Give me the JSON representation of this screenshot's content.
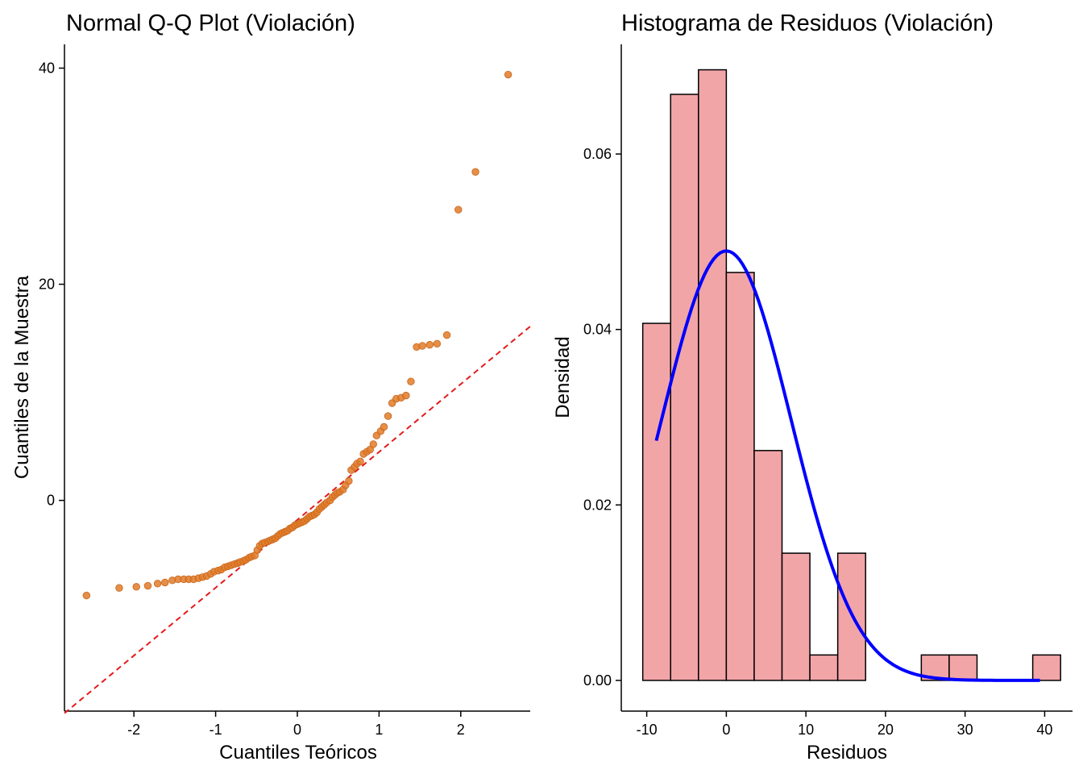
{
  "chart_data": [
    {
      "type": "scatter",
      "title": "Normal Q-Q Plot (Violación)",
      "xlabel": "Cuantiles Teóricos",
      "ylabel": "Cuantiles de la Muestra",
      "xlim": [
        -2.85,
        2.85
      ],
      "ylim": [
        -19.5,
        42.2
      ],
      "x_ticks": [
        -2,
        -1,
        0,
        1,
        2
      ],
      "y_ticks": [
        0,
        20,
        40
      ],
      "grid": false,
      "point_color": "#E07B28",
      "reference_line": {
        "color": "#E41A1C",
        "style": "dashed",
        "slope": 6.28,
        "intercept": -1.8
      },
      "points": [
        {
          "x": -2.58,
          "y": -8.8
        },
        {
          "x": -2.18,
          "y": -8.1
        },
        {
          "x": -1.97,
          "y": -8.0
        },
        {
          "x": -1.83,
          "y": -7.9
        },
        {
          "x": -1.71,
          "y": -7.7
        },
        {
          "x": -1.62,
          "y": -7.6
        },
        {
          "x": -1.53,
          "y": -7.4
        },
        {
          "x": -1.46,
          "y": -7.3
        },
        {
          "x": -1.39,
          "y": -7.3
        },
        {
          "x": -1.33,
          "y": -7.3
        },
        {
          "x": -1.27,
          "y": -7.3
        },
        {
          "x": -1.21,
          "y": -7.2
        },
        {
          "x": -1.16,
          "y": -7.1
        },
        {
          "x": -1.11,
          "y": -7.0
        },
        {
          "x": -1.06,
          "y": -6.8
        },
        {
          "x": -1.02,
          "y": -6.6
        },
        {
          "x": -0.97,
          "y": -6.5
        },
        {
          "x": -0.93,
          "y": -6.4
        },
        {
          "x": -0.89,
          "y": -6.2
        },
        {
          "x": -0.85,
          "y": -6.1
        },
        {
          "x": -0.81,
          "y": -6.0
        },
        {
          "x": -0.77,
          "y": -5.9
        },
        {
          "x": -0.73,
          "y": -5.8
        },
        {
          "x": -0.7,
          "y": -5.7
        },
        {
          "x": -0.66,
          "y": -5.6
        },
        {
          "x": -0.63,
          "y": -5.5
        },
        {
          "x": -0.59,
          "y": -5.3
        },
        {
          "x": -0.56,
          "y": -5.2
        },
        {
          "x": -0.52,
          "y": -5.1
        },
        {
          "x": -0.49,
          "y": -4.6
        },
        {
          "x": -0.46,
          "y": -4.2
        },
        {
          "x": -0.43,
          "y": -4.0
        },
        {
          "x": -0.4,
          "y": -3.9
        },
        {
          "x": -0.36,
          "y": -3.8
        },
        {
          "x": -0.33,
          "y": -3.7
        },
        {
          "x": -0.3,
          "y": -3.6
        },
        {
          "x": -0.27,
          "y": -3.5
        },
        {
          "x": -0.24,
          "y": -3.3
        },
        {
          "x": -0.21,
          "y": -3.1
        },
        {
          "x": -0.18,
          "y": -3.0
        },
        {
          "x": -0.15,
          "y": -2.9
        },
        {
          "x": -0.12,
          "y": -2.8
        },
        {
          "x": -0.09,
          "y": -2.6
        },
        {
          "x": -0.06,
          "y": -2.5
        },
        {
          "x": -0.03,
          "y": -2.3
        },
        {
          "x": 0.0,
          "y": -2.2
        },
        {
          "x": 0.03,
          "y": -2.1
        },
        {
          "x": 0.06,
          "y": -2.0
        },
        {
          "x": 0.09,
          "y": -1.9
        },
        {
          "x": 0.12,
          "y": -1.7
        },
        {
          "x": 0.15,
          "y": -1.5
        },
        {
          "x": 0.18,
          "y": -1.4
        },
        {
          "x": 0.21,
          "y": -1.3
        },
        {
          "x": 0.24,
          "y": -1.1
        },
        {
          "x": 0.27,
          "y": -0.8
        },
        {
          "x": 0.3,
          "y": -0.6
        },
        {
          "x": 0.33,
          "y": -0.4
        },
        {
          "x": 0.36,
          "y": -0.2
        },
        {
          "x": 0.4,
          "y": 0.0
        },
        {
          "x": 0.43,
          "y": 0.3
        },
        {
          "x": 0.46,
          "y": 0.5
        },
        {
          "x": 0.49,
          "y": 0.7
        },
        {
          "x": 0.52,
          "y": 0.8
        },
        {
          "x": 0.56,
          "y": 1.0
        },
        {
          "x": 0.59,
          "y": 1.4
        },
        {
          "x": 0.63,
          "y": 1.8
        },
        {
          "x": 0.66,
          "y": 2.8
        },
        {
          "x": 0.7,
          "y": 3.1
        },
        {
          "x": 0.73,
          "y": 3.4
        },
        {
          "x": 0.77,
          "y": 3.6
        },
        {
          "x": 0.81,
          "y": 4.3
        },
        {
          "x": 0.85,
          "y": 4.5
        },
        {
          "x": 0.89,
          "y": 4.7
        },
        {
          "x": 0.93,
          "y": 5.2
        },
        {
          "x": 0.97,
          "y": 6.0
        },
        {
          "x": 1.02,
          "y": 6.4
        },
        {
          "x": 1.06,
          "y": 6.8
        },
        {
          "x": 1.11,
          "y": 7.8
        },
        {
          "x": 1.16,
          "y": 9.0
        },
        {
          "x": 1.21,
          "y": 9.4
        },
        {
          "x": 1.27,
          "y": 9.5
        },
        {
          "x": 1.33,
          "y": 9.7
        },
        {
          "x": 1.39,
          "y": 11.0
        },
        {
          "x": 1.46,
          "y": 14.2
        },
        {
          "x": 1.53,
          "y": 14.3
        },
        {
          "x": 1.62,
          "y": 14.4
        },
        {
          "x": 1.71,
          "y": 14.5
        },
        {
          "x": 1.83,
          "y": 15.3
        },
        {
          "x": 1.97,
          "y": 26.9
        },
        {
          "x": 2.18,
          "y": 30.4
        },
        {
          "x": 2.58,
          "y": 39.4
        }
      ]
    },
    {
      "type": "bar",
      "title": "Histograma de Residuos (Violación)",
      "xlabel": "Residuos",
      "ylabel": "Densidad",
      "xlim": [
        -13.2,
        43.5
      ],
      "ylim": [
        -0.0035,
        0.0725
      ],
      "x_ticks": [
        -10,
        0,
        10,
        20,
        30,
        40
      ],
      "y_ticks": [
        0.0,
        0.02,
        0.04,
        0.06
      ],
      "y_tick_labels": [
        "0.00",
        "0.02",
        "0.04",
        "0.06"
      ],
      "grid": false,
      "bar_fill": "#F2A5A7",
      "bar_border": "#000000",
      "bins": [
        {
          "from": -10.5,
          "to": -7.0,
          "density": 0.0407
        },
        {
          "from": -7.0,
          "to": -3.5,
          "density": 0.0668
        },
        {
          "from": -3.5,
          "to": 0.0,
          "density": 0.0696
        },
        {
          "from": 0.0,
          "to": 3.5,
          "density": 0.0465
        },
        {
          "from": 3.5,
          "to": 7.0,
          "density": 0.0262
        },
        {
          "from": 7.0,
          "to": 10.5,
          "density": 0.0145
        },
        {
          "from": 10.5,
          "to": 14.0,
          "density": 0.0029
        },
        {
          "from": 14.0,
          "to": 17.5,
          "density": 0.0145
        },
        {
          "from": 17.5,
          "to": 21.0,
          "density": 0.0
        },
        {
          "from": 21.0,
          "to": 24.5,
          "density": 0.0
        },
        {
          "from": 24.5,
          "to": 28.0,
          "density": 0.0029
        },
        {
          "from": 28.0,
          "to": 31.5,
          "density": 0.0029
        },
        {
          "from": 31.5,
          "to": 35.0,
          "density": 0.0
        },
        {
          "from": 35.0,
          "to": 38.5,
          "density": 0.0
        },
        {
          "from": 38.5,
          "to": 42.0,
          "density": 0.0029
        }
      ],
      "density_curve": {
        "color": "#0000FF",
        "type": "normal",
        "mean": 0.0,
        "sd": 8.15,
        "x_range": [
          -8.8,
          39.4
        ]
      }
    }
  ]
}
